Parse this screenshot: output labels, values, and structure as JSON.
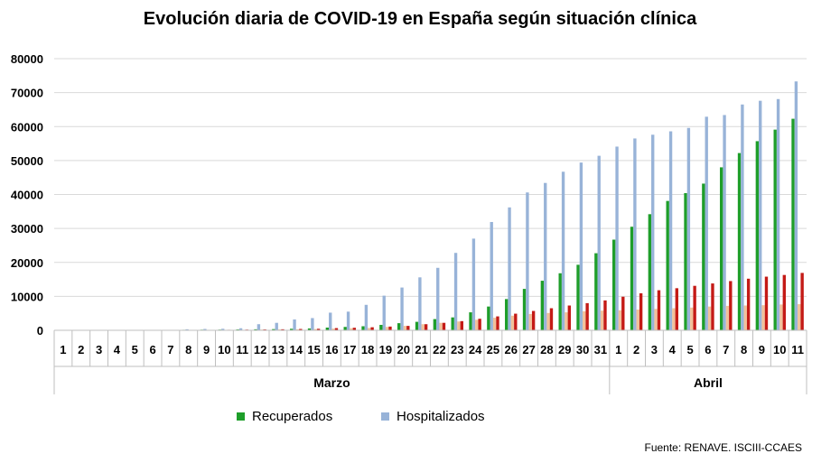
{
  "chart_data": {
    "type": "bar",
    "title": "Evolución diaria de COVID-19 en España según situación clínica",
    "xlabel": "",
    "ylabel": "",
    "ylim": [
      0,
      80000
    ],
    "yticks": [
      "0",
      "10000",
      "20000",
      "30000",
      "40000",
      "50000",
      "60000",
      "70000",
      "80000"
    ],
    "grid": true,
    "legend_position": "bottom",
    "categories": [
      "1",
      "2",
      "3",
      "4",
      "5",
      "6",
      "7",
      "8",
      "9",
      "10",
      "11",
      "12",
      "13",
      "14",
      "15",
      "16",
      "17",
      "18",
      "19",
      "20",
      "21",
      "22",
      "23",
      "24",
      "25",
      "26",
      "27",
      "28",
      "29",
      "30",
      "31",
      "1",
      "2",
      "3",
      "4",
      "5",
      "6",
      "7",
      "8",
      "9",
      "10",
      "11"
    ],
    "groups": [
      {
        "label": "Marzo",
        "count": 31
      },
      {
        "label": "Abril",
        "count": 11
      }
    ],
    "series": [
      {
        "name": "Recuperados",
        "color": "#1e9e2a",
        "values": [
          0,
          0,
          0,
          0,
          0,
          0,
          0,
          150,
          180,
          200,
          250,
          300,
          350,
          450,
          550,
          800,
          1000,
          1200,
          1600,
          2100,
          2500,
          3300,
          3800,
          5300,
          7000,
          9200,
          12200,
          14600,
          16800,
          19300,
          22700,
          26700,
          30500,
          34200,
          38100,
          40400,
          43200,
          48000,
          52200,
          55700,
          59100,
          62300
        ]
      },
      {
        "name": "Hospitalizados",
        "color": "#98b3d8",
        "values": [
          0,
          0,
          0,
          0,
          0,
          0,
          0,
          300,
          400,
          450,
          600,
          1800,
          2200,
          3200,
          3600,
          5200,
          5500,
          7500,
          10200,
          12600,
          15600,
          18400,
          22800,
          27000,
          31900,
          36200,
          40600,
          43400,
          46700,
          49400,
          51400,
          54100,
          56500,
          57600,
          58600,
          59600,
          62900,
          63400,
          66500,
          67600,
          68100,
          73300
        ]
      },
      {
        "color": "#f2c29a",
        "values": [
          0,
          0,
          0,
          0,
          0,
          0,
          0,
          50,
          60,
          80,
          100,
          200,
          250,
          300,
          350,
          500,
          600,
          700,
          1000,
          1300,
          1800,
          2200,
          2600,
          3100,
          3700,
          4300,
          4800,
          5100,
          5300,
          5600,
          5800,
          5900,
          6100,
          6300,
          6500,
          6700,
          7000,
          7200,
          7300,
          7400,
          7600,
          7700
        ]
      },
      {
        "color": "#c41a16",
        "values": [
          0,
          0,
          0,
          0,
          0,
          0,
          0,
          80,
          120,
          150,
          200,
          250,
          300,
          400,
          450,
          650,
          750,
          900,
          1100,
          1300,
          1800,
          2200,
          2700,
          3400,
          4100,
          4900,
          5700,
          6500,
          7300,
          8000,
          8800,
          9900,
          10900,
          11800,
          12400,
          13100,
          13800,
          14500,
          15200,
          15800,
          16300,
          16900
        ]
      }
    ],
    "source": "Fuente: RENAVE. ISCIII-CCAES"
  }
}
